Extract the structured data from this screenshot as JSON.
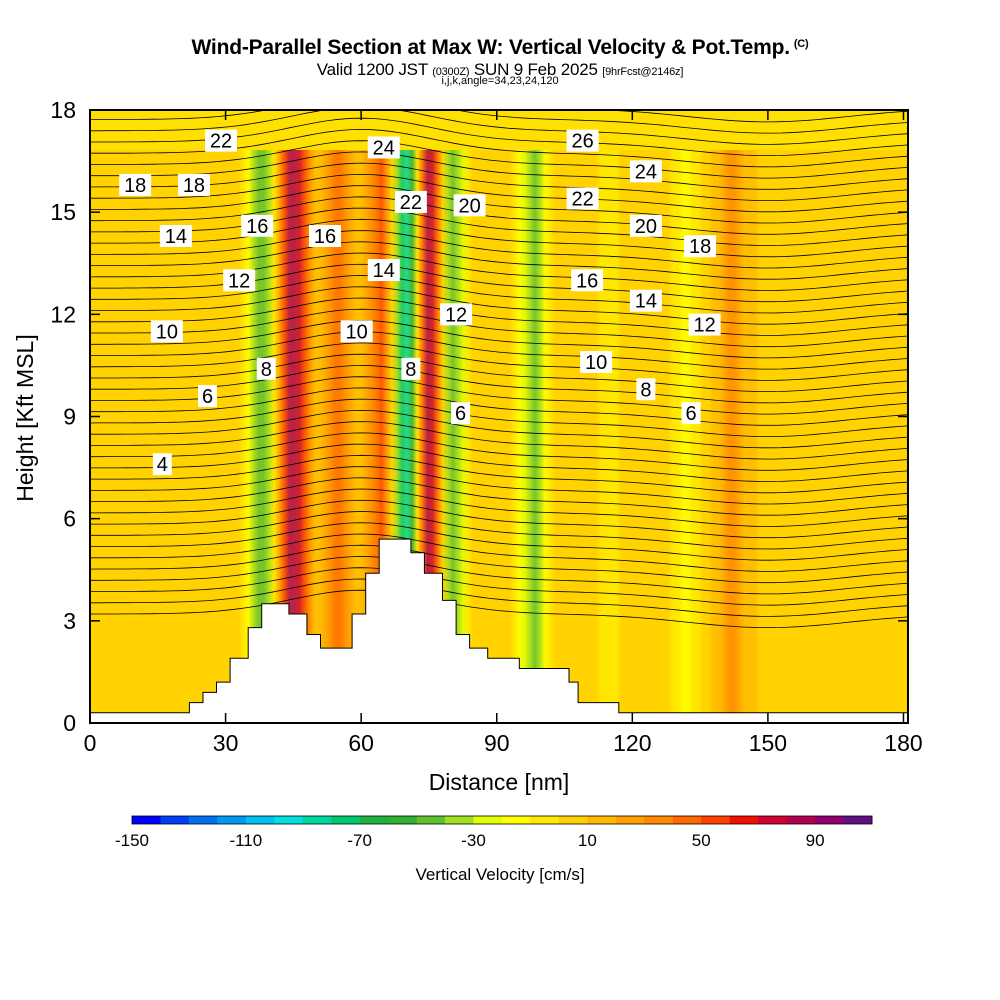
{
  "title": {
    "main": "Wind-Parallel Section at Max W: Vertical Velocity & Pot.Temp.",
    "copyright": "(C)",
    "valid_prefix": "Valid 1200 JST",
    "valid_utc": "(0300Z)",
    "valid_date": "SUN 9 Feb 2025",
    "forecast": "[9hrFcst@2146z]",
    "params": "i,j,k,angle=34,23,24,120"
  },
  "chart_data": {
    "type": "heatmap",
    "xlabel": "Distance [nm]",
    "ylabel": "Height [Kft MSL]",
    "xlim": [
      0,
      181
    ],
    "ylim": [
      0,
      18
    ],
    "xticks": [
      0,
      30,
      60,
      90,
      120,
      150,
      180
    ],
    "yticks": [
      0,
      3,
      6,
      9,
      12,
      15,
      18
    ],
    "colorbar": {
      "label": "Vertical Velocity [cm/s]",
      "min": -150,
      "max": 110,
      "step": 10,
      "tick_labels": [
        -150,
        -110,
        -70,
        -30,
        10,
        50,
        90
      ],
      "colors": [
        "#0000ff",
        "#0040f5",
        "#0070f0",
        "#0098f0",
        "#00c0f0",
        "#00e0e0",
        "#00d8a0",
        "#00c870",
        "#20b040",
        "#30b030",
        "#60c030",
        "#a0e020",
        "#e0ff00",
        "#ffff00",
        "#ffe800",
        "#ffd000",
        "#ffb800",
        "#ffa000",
        "#ff8800",
        "#ff6800",
        "#ff4000",
        "#f01000",
        "#d00030",
        "#b00050",
        "#900070",
        "#601080"
      ]
    },
    "velocity_bands_cm_s": [
      {
        "x": 38,
        "w": -60
      },
      {
        "x": 45,
        "w": 80
      },
      {
        "x": 55,
        "w": 40
      },
      {
        "x": 65,
        "w": 50
      },
      {
        "x": 70,
        "w": -110
      },
      {
        "x": 75,
        "w": 90
      },
      {
        "x": 80,
        "w": -60
      },
      {
        "x": 98,
        "w": -50
      },
      {
        "x": 115,
        "w": -15
      },
      {
        "x": 132,
        "w": -20
      },
      {
        "x": 142,
        "w": 25
      }
    ],
    "pot_temp_contour_labels": [
      {
        "text": "22",
        "x": 29,
        "y": 17.1
      },
      {
        "text": "24",
        "x": 65,
        "y": 16.9
      },
      {
        "text": "26",
        "x": 109,
        "y": 17.1
      },
      {
        "text": "18",
        "x": 10,
        "y": 15.8
      },
      {
        "text": "18",
        "x": 23,
        "y": 15.8
      },
      {
        "text": "24",
        "x": 123,
        "y": 16.2
      },
      {
        "text": "22",
        "x": 71,
        "y": 15.3
      },
      {
        "text": "20",
        "x": 84,
        "y": 15.2
      },
      {
        "text": "22",
        "x": 109,
        "y": 15.4
      },
      {
        "text": "16",
        "x": 37,
        "y": 14.6
      },
      {
        "text": "16",
        "x": 52,
        "y": 14.3
      },
      {
        "text": "14",
        "x": 19,
        "y": 14.3
      },
      {
        "text": "20",
        "x": 123,
        "y": 14.6
      },
      {
        "text": "18",
        "x": 135,
        "y": 14.0
      },
      {
        "text": "14",
        "x": 65,
        "y": 13.3
      },
      {
        "text": "16",
        "x": 110,
        "y": 13.0
      },
      {
        "text": "12",
        "x": 33,
        "y": 13.0
      },
      {
        "text": "14",
        "x": 123,
        "y": 12.4
      },
      {
        "text": "12",
        "x": 81,
        "y": 12.0
      },
      {
        "text": "12",
        "x": 136,
        "y": 11.7
      },
      {
        "text": "10",
        "x": 17,
        "y": 11.5
      },
      {
        "text": "10",
        "x": 59,
        "y": 11.5
      },
      {
        "text": "10",
        "x": 112,
        "y": 10.6
      },
      {
        "text": "8",
        "x": 39,
        "y": 10.4
      },
      {
        "text": "8",
        "x": 71,
        "y": 10.4
      },
      {
        "text": "8",
        "x": 123,
        "y": 9.8
      },
      {
        "text": "6",
        "x": 26,
        "y": 9.6
      },
      {
        "text": "6",
        "x": 82,
        "y": 9.1
      },
      {
        "text": "6",
        "x": 133,
        "y": 9.1
      },
      {
        "text": "4",
        "x": 16,
        "y": 7.6
      }
    ],
    "terrain_kft": [
      [
        0,
        0.3
      ],
      [
        22,
        0.3
      ],
      [
        22,
        0.6
      ],
      [
        25,
        0.6
      ],
      [
        25,
        0.9
      ],
      [
        28,
        0.9
      ],
      [
        28,
        1.2
      ],
      [
        31,
        1.2
      ],
      [
        31,
        1.9
      ],
      [
        35,
        1.9
      ],
      [
        35,
        2.8
      ],
      [
        38,
        2.8
      ],
      [
        38,
        3.5
      ],
      [
        44,
        3.5
      ],
      [
        44,
        3.2
      ],
      [
        48,
        3.2
      ],
      [
        48,
        2.6
      ],
      [
        51,
        2.6
      ],
      [
        51,
        2.2
      ],
      [
        58,
        2.2
      ],
      [
        58,
        3.2
      ],
      [
        61,
        3.2
      ],
      [
        61,
        4.4
      ],
      [
        64,
        4.4
      ],
      [
        64,
        5.4
      ],
      [
        71,
        5.4
      ],
      [
        71,
        5.0
      ],
      [
        74,
        5.0
      ],
      [
        74,
        4.4
      ],
      [
        78,
        4.4
      ],
      [
        78,
        3.6
      ],
      [
        81,
        3.6
      ],
      [
        81,
        2.6
      ],
      [
        84,
        2.6
      ],
      [
        84,
        2.2
      ],
      [
        88,
        2.2
      ],
      [
        88,
        1.9
      ],
      [
        95,
        1.9
      ],
      [
        95,
        1.6
      ],
      [
        106,
        1.6
      ],
      [
        106,
        1.2
      ],
      [
        108,
        1.2
      ],
      [
        108,
        0.6
      ],
      [
        117,
        0.6
      ],
      [
        117,
        0.3
      ],
      [
        181,
        0.3
      ],
      [
        181,
        0
      ],
      [
        0,
        0
      ]
    ]
  }
}
